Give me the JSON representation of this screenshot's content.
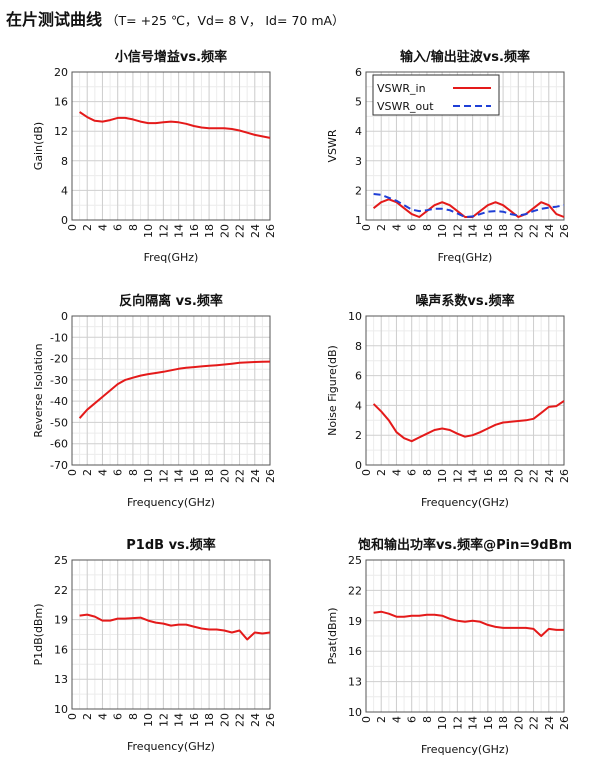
{
  "page": {
    "title": "在片测试曲线",
    "conditions": "（T= +25 ℃，Vd= 8 V，  Id= 70 mA）"
  },
  "chart_data": [
    {
      "type": "line",
      "title": "小信号增益vs.频率",
      "xlabel": "Freq(GHz)",
      "ylabel": "Gain(dB)",
      "xlim": [
        0,
        26
      ],
      "ylim": [
        0,
        20
      ],
      "xticks": [
        0,
        2,
        4,
        6,
        8,
        10,
        12,
        14,
        16,
        18,
        20,
        22,
        24,
        26
      ],
      "yticks": [
        0,
        4,
        8,
        12,
        16,
        20
      ],
      "grid": true,
      "series": [
        {
          "color": "#e41a1a",
          "dashed": false,
          "x": [
            1,
            2,
            3,
            4,
            5,
            6,
            7,
            8,
            9,
            10,
            11,
            12,
            13,
            14,
            15,
            16,
            17,
            18,
            19,
            20,
            21,
            22,
            23,
            24,
            25,
            26
          ],
          "y": [
            14.6,
            13.9,
            13.4,
            13.3,
            13.5,
            13.8,
            13.8,
            13.6,
            13.3,
            13.1,
            13.1,
            13.2,
            13.3,
            13.2,
            13.0,
            12.7,
            12.5,
            12.4,
            12.4,
            12.4,
            12.3,
            12.1,
            11.8,
            11.5,
            11.3,
            11.1
          ]
        }
      ]
    },
    {
      "type": "line",
      "title": "输入/输出驻波vs.频率",
      "xlabel": "Freq(GHz)",
      "ylabel": "VSWR",
      "xlim": [
        0,
        26
      ],
      "ylim": [
        1,
        6
      ],
      "xticks": [
        0,
        2,
        4,
        6,
        8,
        10,
        12,
        14,
        16,
        18,
        20,
        22,
        24,
        26
      ],
      "yticks": [
        1,
        2,
        3,
        4,
        5,
        6
      ],
      "grid": true,
      "legend_position": "top-left",
      "series": [
        {
          "name": "VSWR_in",
          "color": "#e41a1a",
          "dashed": false,
          "x": [
            1,
            2,
            3,
            4,
            5,
            6,
            7,
            8,
            9,
            10,
            11,
            12,
            13,
            14,
            15,
            16,
            17,
            18,
            19,
            20,
            21,
            22,
            23,
            24,
            25,
            26
          ],
          "y": [
            1.4,
            1.6,
            1.7,
            1.6,
            1.4,
            1.2,
            1.1,
            1.3,
            1.5,
            1.6,
            1.5,
            1.3,
            1.1,
            1.1,
            1.3,
            1.5,
            1.6,
            1.5,
            1.3,
            1.1,
            1.2,
            1.4,
            1.6,
            1.5,
            1.2,
            1.1
          ]
        },
        {
          "name": "VSWR_out",
          "color": "#1f3fd6",
          "dashed": true,
          "x": [
            1,
            2,
            3,
            4,
            5,
            6,
            7,
            8,
            9,
            10,
            11,
            12,
            13,
            14,
            15,
            16,
            17,
            18,
            19,
            20,
            21,
            22,
            23,
            24,
            25,
            26
          ],
          "y": [
            1.88,
            1.85,
            1.75,
            1.65,
            1.5,
            1.35,
            1.3,
            1.33,
            1.38,
            1.38,
            1.33,
            1.22,
            1.1,
            1.12,
            1.2,
            1.28,
            1.3,
            1.28,
            1.2,
            1.15,
            1.2,
            1.3,
            1.38,
            1.42,
            1.45,
            1.5
          ]
        }
      ]
    },
    {
      "type": "line",
      "title": "反向隔离 vs.频率",
      "xlabel": "Frequency(GHz)",
      "ylabel": "Reverse Isolation",
      "xlim": [
        0,
        26
      ],
      "ylim": [
        -70,
        0
      ],
      "xticks": [
        0,
        2,
        4,
        6,
        8,
        10,
        12,
        14,
        16,
        18,
        20,
        22,
        24,
        26
      ],
      "yticks": [
        -70,
        -60,
        -50,
        -40,
        -30,
        -20,
        -10,
        0
      ],
      "grid": true,
      "series": [
        {
          "color": "#e41a1a",
          "dashed": false,
          "x": [
            1,
            2,
            3,
            4,
            5,
            6,
            7,
            8,
            9,
            10,
            11,
            12,
            13,
            14,
            15,
            16,
            17,
            18,
            19,
            20,
            21,
            22,
            23,
            24,
            25,
            26
          ],
          "y": [
            -48,
            -44,
            -41,
            -38,
            -35,
            -32,
            -30,
            -29,
            -28,
            -27.3,
            -26.8,
            -26.2,
            -25.5,
            -24.8,
            -24.3,
            -24,
            -23.7,
            -23.4,
            -23.1,
            -22.8,
            -22.4,
            -22,
            -21.8,
            -21.6,
            -21.5,
            -21.4
          ]
        }
      ]
    },
    {
      "type": "line",
      "title": "噪声系数vs.频率",
      "xlabel": "Frequency(GHz)",
      "ylabel": "Noise Figure(dB)",
      "xlim": [
        0,
        26
      ],
      "ylim": [
        0,
        10
      ],
      "xticks": [
        0,
        2,
        4,
        6,
        8,
        10,
        12,
        14,
        16,
        18,
        20,
        22,
        24,
        26
      ],
      "yticks": [
        0,
        2,
        4,
        6,
        8,
        10
      ],
      "grid": true,
      "series": [
        {
          "color": "#e41a1a",
          "dashed": false,
          "x": [
            1,
            2,
            3,
            4,
            5,
            6,
            7,
            8,
            9,
            10,
            11,
            12,
            13,
            14,
            15,
            16,
            17,
            18,
            19,
            20,
            21,
            22,
            23,
            24,
            25,
            26
          ],
          "y": [
            4.1,
            3.6,
            3.0,
            2.2,
            1.8,
            1.6,
            1.85,
            2.1,
            2.35,
            2.45,
            2.35,
            2.1,
            1.9,
            2.0,
            2.2,
            2.45,
            2.7,
            2.85,
            2.9,
            2.95,
            3.0,
            3.1,
            3.5,
            3.9,
            3.95,
            4.3
          ]
        }
      ]
    },
    {
      "type": "line",
      "title": "P1dB vs.频率",
      "xlabel": "Frequency(GHz)",
      "ylabel": "P1dB(dBm)",
      "xlim": [
        0,
        26
      ],
      "ylim": [
        10,
        25
      ],
      "xticks": [
        0,
        2,
        4,
        6,
        8,
        10,
        12,
        14,
        16,
        18,
        20,
        22,
        24,
        26
      ],
      "yticks": [
        10,
        13,
        16,
        19,
        22,
        25
      ],
      "grid": true,
      "series": [
        {
          "color": "#e41a1a",
          "dashed": false,
          "x": [
            1,
            2,
            3,
            4,
            5,
            6,
            7,
            8,
            9,
            10,
            11,
            12,
            13,
            14,
            15,
            16,
            17,
            18,
            19,
            20,
            21,
            22,
            23,
            24,
            25,
            26
          ],
          "y": [
            19.4,
            19.5,
            19.3,
            18.9,
            18.9,
            19.1,
            19.1,
            19.15,
            19.2,
            18.9,
            18.7,
            18.6,
            18.4,
            18.5,
            18.5,
            18.3,
            18.1,
            18.0,
            18.0,
            17.9,
            17.7,
            17.9,
            17.0,
            17.7,
            17.6,
            17.7
          ]
        }
      ]
    },
    {
      "type": "line",
      "title": "饱和输出功率vs.频率@Pin=9dBm",
      "xlabel": "Frequency(GHz)",
      "ylabel": "Psat(dBm)",
      "xlim": [
        0,
        26
      ],
      "ylim": [
        10,
        25
      ],
      "xticks": [
        0,
        2,
        4,
        6,
        8,
        10,
        12,
        14,
        16,
        18,
        20,
        22,
        24,
        26
      ],
      "yticks": [
        10,
        13,
        16,
        19,
        22,
        25
      ],
      "grid": true,
      "series": [
        {
          "color": "#e41a1a",
          "dashed": false,
          "x": [
            1,
            2,
            3,
            4,
            5,
            6,
            7,
            8,
            9,
            10,
            11,
            12,
            13,
            14,
            15,
            16,
            17,
            18,
            19,
            20,
            21,
            22,
            23,
            24,
            25,
            26
          ],
          "y": [
            19.8,
            19.9,
            19.7,
            19.4,
            19.4,
            19.5,
            19.5,
            19.6,
            19.6,
            19.5,
            19.2,
            19.0,
            18.9,
            19.0,
            18.9,
            18.6,
            18.4,
            18.3,
            18.3,
            18.3,
            18.3,
            18.2,
            17.5,
            18.2,
            18.1,
            18.1
          ]
        }
      ]
    }
  ]
}
